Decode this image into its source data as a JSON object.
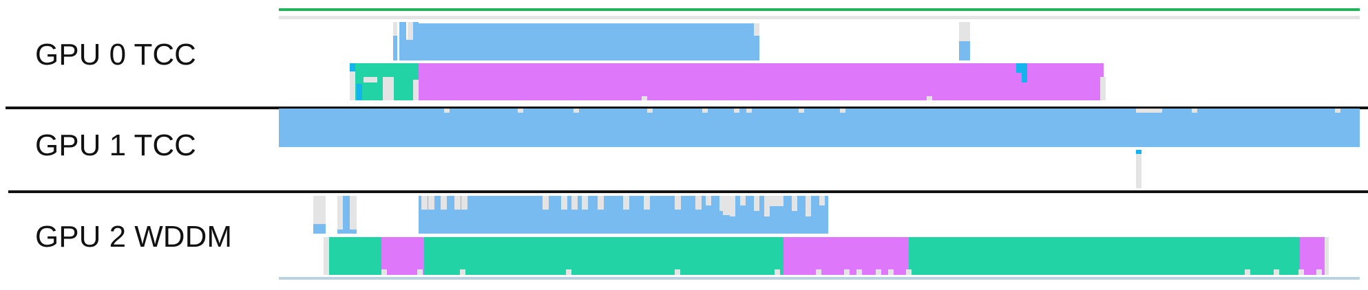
{
  "lanes": [
    {
      "id": "gpu0",
      "label": "GPU 0 TCC"
    },
    {
      "id": "gpu1",
      "label": "GPU 1 TCC"
    },
    {
      "id": "gpu2",
      "label": "GPU 2 WDDM"
    }
  ],
  "colors": {
    "compute": "#77bbf1",
    "copy": "#22d3a5",
    "graphics": "#df77fb",
    "idle": "#e4e4e4",
    "highlight": "#16b4ef",
    "accent_green": "#22b45a",
    "track_edge": "#b9d3e2"
  }
}
